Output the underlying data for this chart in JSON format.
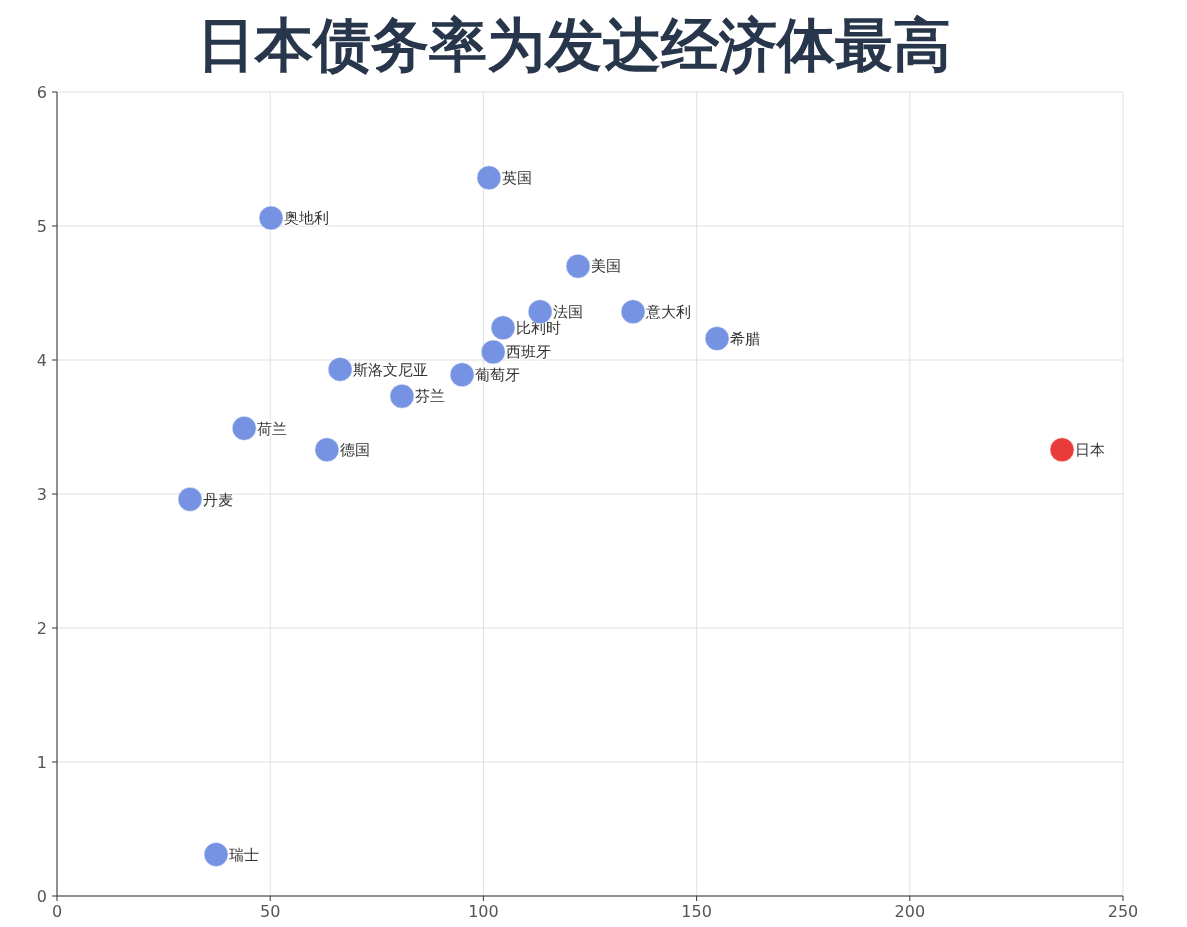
{
  "chart_data": {
    "type": "scatter",
    "title": "日本债务率为发达经济体最高",
    "x": [
      101.3,
      50.2,
      122.2,
      113.3,
      135.1,
      104.6,
      154.8,
      102.3,
      66.4,
      95.0,
      80.9,
      43.9,
      63.3,
      235.7,
      31.2,
      37.3
    ],
    "values": [
      5.36,
      5.06,
      4.7,
      4.36,
      4.36,
      4.24,
      4.16,
      4.06,
      3.93,
      3.89,
      3.73,
      3.49,
      3.33,
      3.33,
      2.96,
      0.31
    ],
    "colors": [
      "#6f8ce0",
      "#6f8ce0",
      "#6f8ce0",
      "#6f8ce0",
      "#6f8ce0",
      "#6f8ce0",
      "#6f8ce0",
      "#6f8ce0",
      "#6f8ce0",
      "#6f8ce0",
      "#6f8ce0",
      "#6f8ce0",
      "#6f8ce0",
      "#e8312f",
      "#6f8ce0",
      "#6f8ce0"
    ],
    "xlim": [
      0,
      250
    ],
    "xticks": [
      0,
      50,
      100,
      150,
      200,
      250
    ],
    "ylim": [
      0,
      6
    ],
    "yticks": [
      0,
      1,
      2,
      3,
      4,
      5,
      6
    ],
    "grid": true,
    "marker": "circle",
    "annotations": [
      {
        "text": "英国",
        "x": 101.3,
        "y": 5.36
      },
      {
        "text": "奥地利",
        "x": 50.2,
        "y": 5.06
      },
      {
        "text": "美国",
        "x": 122.2,
        "y": 4.7
      },
      {
        "text": "法国",
        "x": 113.3,
        "y": 4.36
      },
      {
        "text": "意大利",
        "x": 135.1,
        "y": 4.36
      },
      {
        "text": "比利时",
        "x": 104.6,
        "y": 4.24
      },
      {
        "text": "希腊",
        "x": 154.8,
        "y": 4.16
      },
      {
        "text": "西班牙",
        "x": 102.3,
        "y": 4.06
      },
      {
        "text": "斯洛文尼亚",
        "x": 66.4,
        "y": 3.93
      },
      {
        "text": "葡萄牙",
        "x": 95.0,
        "y": 3.89
      },
      {
        "text": "芬兰",
        "x": 80.9,
        "y": 3.73
      },
      {
        "text": "荷兰",
        "x": 43.9,
        "y": 3.49
      },
      {
        "text": "德国",
        "x": 63.3,
        "y": 3.33
      },
      {
        "text": "日本",
        "x": 235.7,
        "y": 3.33
      },
      {
        "text": "丹麦",
        "x": 31.2,
        "y": 2.96
      },
      {
        "text": "瑞士",
        "x": 37.3,
        "y": 0.31
      }
    ]
  }
}
